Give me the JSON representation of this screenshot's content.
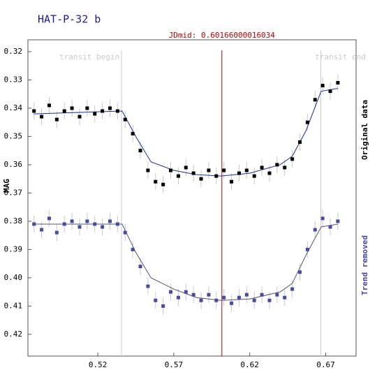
{
  "chart_data": {
    "type": "scatter",
    "title": "HAT-P-32 b",
    "y_label": "MAG",
    "xlim": [
      0.474,
      0.69
    ],
    "ylim": [
      0.4277,
      0.3158
    ],
    "xticks": [
      0.52,
      0.57,
      0.62,
      0.67
    ],
    "yticks": [
      0.32,
      0.33,
      0.34,
      0.35,
      0.36,
      0.37,
      0.38,
      0.39,
      {
        "value": 0.4,
        "label": "0.40"
      },
      0.41,
      0.42
    ],
    "annotations": [
      {
        "label": "transit begin",
        "x": 0.5356,
        "color": "#cccccc"
      },
      {
        "label": "transit end",
        "x": 0.6668,
        "color": "#cccccc"
      },
      {
        "label": "JDmid: 0.60166000016034",
        "x": 0.60166000016034,
        "color": "#bb0000"
      }
    ],
    "x": [
      0.478,
      0.483,
      0.488,
      0.493,
      0.498,
      0.503,
      0.508,
      0.513,
      0.518,
      0.523,
      0.528,
      0.533,
      0.538,
      0.543,
      0.548,
      0.553,
      0.558,
      0.563,
      0.568,
      0.573,
      0.578,
      0.583,
      0.588,
      0.593,
      0.598,
      0.603,
      0.608,
      0.613,
      0.618,
      0.623,
      0.628,
      0.633,
      0.638,
      0.643,
      0.648,
      0.653,
      0.658,
      0.663,
      0.668,
      0.673,
      0.678
    ],
    "series": [
      {
        "name": "Original data",
        "color": "#000000",
        "error": 0.003,
        "values": [
          0.341,
          0.343,
          0.339,
          0.344,
          0.341,
          0.34,
          0.343,
          0.34,
          0.342,
          0.341,
          0.34,
          0.341,
          0.344,
          0.349,
          0.355,
          0.362,
          0.366,
          0.367,
          0.362,
          0.364,
          0.361,
          0.363,
          0.365,
          0.362,
          0.364,
          0.362,
          0.366,
          0.363,
          0.362,
          0.364,
          0.361,
          0.363,
          0.36,
          0.361,
          0.358,
          0.352,
          0.345,
          0.337,
          0.332,
          0.334,
          0.331
        ],
        "model_color": "#1a2f9a",
        "model_x": [
          0.478,
          0.536,
          0.545,
          0.555,
          0.57,
          0.585,
          0.601,
          0.62,
          0.64,
          0.648,
          0.657,
          0.667,
          0.678
        ],
        "model_values": [
          0.342,
          0.341,
          0.35,
          0.359,
          0.362,
          0.3635,
          0.364,
          0.363,
          0.36,
          0.357,
          0.348,
          0.334,
          0.333
        ]
      },
      {
        "name": "Trend removed",
        "color": "#4a4aa0",
        "error": 0.003,
        "values": [
          0.381,
          0.383,
          0.379,
          0.384,
          0.381,
          0.38,
          0.382,
          0.38,
          0.381,
          0.382,
          0.38,
          0.381,
          0.384,
          0.39,
          0.396,
          0.403,
          0.408,
          0.41,
          0.405,
          0.407,
          0.405,
          0.406,
          0.408,
          0.406,
          0.408,
          0.407,
          0.409,
          0.407,
          0.406,
          0.408,
          0.406,
          0.408,
          0.406,
          0.407,
          0.404,
          0.398,
          0.39,
          0.383,
          0.379,
          0.382,
          0.38
        ],
        "model_color": "#555577",
        "model_x": [
          0.478,
          0.536,
          0.545,
          0.555,
          0.57,
          0.585,
          0.601,
          0.62,
          0.64,
          0.648,
          0.657,
          0.667,
          0.678
        ],
        "model_values": [
          0.381,
          0.381,
          0.391,
          0.4,
          0.404,
          0.407,
          0.408,
          0.4075,
          0.405,
          0.402,
          0.392,
          0.382,
          0.381
        ]
      }
    ]
  }
}
